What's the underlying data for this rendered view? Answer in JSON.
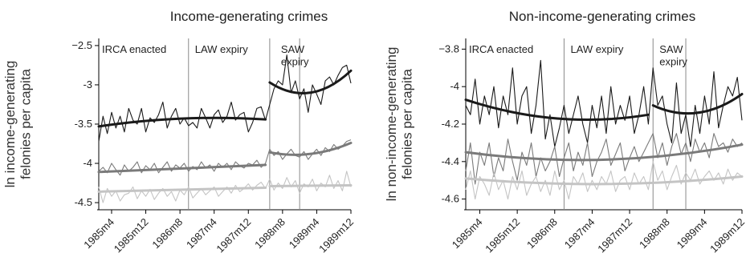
{
  "chart_data": [
    {
      "type": "line",
      "title": "Income-generating crimes",
      "ylabel": "ln income-generating\nfelonies per capita",
      "xlabel": "",
      "x_tick_labels": [
        "1985m4",
        "1985m12",
        "1986m8",
        "1987m4",
        "1987m12",
        "1988m8",
        "1989m4",
        "1989m12"
      ],
      "x_range": [
        "1985m1",
        "1989m12"
      ],
      "y_ticks": [
        -2.5,
        -3,
        -3.5,
        -4,
        -4.5
      ],
      "y_tick_labels": [
        "−2.5",
        "-3",
        "-3.5",
        "-4",
        "-4.5"
      ],
      "ylim": [
        -4.55,
        -2.45
      ],
      "grid": false,
      "events": [
        {
          "label": "IRCA enacted",
          "x": "1986m10"
        },
        {
          "label": "LAW expiry",
          "x": "1988m5"
        },
        {
          "label": "SAW\nexpiry",
          "x": "1988m12"
        }
      ],
      "series": [
        {
          "color": "#1a1a1a",
          "kind": "raw",
          "values": [
            -3.72,
            -3.4,
            -3.62,
            -3.35,
            -3.55,
            -3.4,
            -3.6,
            -3.3,
            -3.45,
            -3.5,
            -3.3,
            -3.6,
            -3.42,
            -3.48,
            -3.38,
            -3.22,
            -3.55,
            -3.4,
            -3.3,
            -3.5,
            -3.42,
            -3.52,
            -3.48,
            -3.55,
            -3.3,
            -3.42,
            -3.55,
            -3.38,
            -3.32,
            -3.48,
            -3.4,
            -3.22,
            -3.45,
            -3.38,
            -3.35,
            -3.6,
            -3.48,
            -3.3,
            -3.28,
            -3.45,
            -3.25,
            -3.05,
            -2.95,
            -3.0,
            -2.62,
            -3.1,
            -2.95,
            -3.18,
            -3.05,
            -3.35,
            -3.0,
            -3.12,
            -3.25,
            -2.95,
            -2.9,
            -3.0,
            -2.88,
            -2.78,
            -2.75,
            -2.98
          ]
        },
        {
          "color": "#1a1a1a",
          "kind": "fit",
          "segments": [
            {
              "from": "1985m1",
              "to": "1988m4",
              "y_start": -3.53,
              "y_peak": -3.43,
              "y_end": -3.44
            },
            {
              "from": "1988m5",
              "to": "1989m12",
              "y_start": -2.97,
              "y_min": -3.1,
              "y_end": -2.82
            }
          ]
        },
        {
          "color": "#7a7a7a",
          "kind": "raw",
          "values": [
            -4.1,
            -4.05,
            -4.12,
            -4.0,
            -4.08,
            -4.15,
            -4.02,
            -4.1,
            -4.05,
            -3.98,
            -4.12,
            -4.03,
            -4.08,
            -4.0,
            -4.12,
            -4.05,
            -3.98,
            -4.1,
            -4.02,
            -4.06,
            -4.0,
            -4.1,
            -4.04,
            -4.08,
            -3.98,
            -4.06,
            -4.02,
            -4.1,
            -4.0,
            -4.05,
            -4.0,
            -4.08,
            -3.98,
            -4.03,
            -4.06,
            -4.0,
            -4.02,
            -3.96,
            -4.05,
            -4.0,
            -3.82,
            -3.9,
            -3.85,
            -3.95,
            -3.88,
            -3.82,
            -3.9,
            -3.92,
            -3.85,
            -3.95,
            -3.88,
            -3.82,
            -3.9,
            -3.8,
            -3.85,
            -3.76,
            -3.82,
            -3.78,
            -3.72,
            -3.7
          ]
        },
        {
          "color": "#7a7a7a",
          "kind": "fit",
          "segments": [
            {
              "from": "1985m1",
              "to": "1988m4",
              "y_start": -4.11,
              "y_end": -4.02
            },
            {
              "from": "1988m5",
              "to": "1989m12",
              "y_start": -3.86,
              "y_min": -3.88,
              "y_end": -3.74
            }
          ]
        },
        {
          "color": "#c4c4c4",
          "kind": "raw",
          "values": [
            -4.3,
            -4.5,
            -4.32,
            -4.42,
            -4.35,
            -4.48,
            -4.4,
            -4.38,
            -4.3,
            -4.45,
            -4.35,
            -4.42,
            -4.33,
            -4.46,
            -4.38,
            -4.32,
            -4.42,
            -4.36,
            -4.48,
            -4.34,
            -4.4,
            -4.3,
            -4.44,
            -4.38,
            -4.32,
            -4.4,
            -4.35,
            -4.3,
            -4.42,
            -4.36,
            -4.3,
            -4.38,
            -4.28,
            -4.36,
            -4.32,
            -4.26,
            -4.34,
            -4.28,
            -4.24,
            -4.32,
            -4.2,
            -4.34,
            -4.25,
            -4.32,
            -4.18,
            -4.3,
            -4.22,
            -4.38,
            -4.26,
            -4.3,
            -4.2,
            -4.35,
            -4.25,
            -4.3,
            -4.15,
            -4.32,
            -4.22,
            -4.35,
            -4.1,
            -4.3
          ]
        },
        {
          "color": "#c4c4c4",
          "kind": "fit",
          "segments": [
            {
              "from": "1985m1",
              "to": "1988m4",
              "y_start": -4.36,
              "y_end": -4.31
            },
            {
              "from": "1988m5",
              "to": "1989m12",
              "y_start": -4.29,
              "y_end": -4.28
            }
          ]
        }
      ]
    },
    {
      "type": "line",
      "title": "Non-income-generating crimes",
      "ylabel": "ln non-income-generating\nfelonies per capita",
      "xlabel": "",
      "x_tick_labels": [
        "1985m4",
        "1985m12",
        "1986m8",
        "1987m4",
        "1987m12",
        "1988m8",
        "1989m4",
        "1989m12"
      ],
      "x_range": [
        "1985m1",
        "1989m12"
      ],
      "y_ticks": [
        -3.8,
        -4,
        -4.2,
        -4.4,
        -4.6
      ],
      "y_tick_labels": [
        "−3.8",
        "-4",
        "-4.2",
        "-4.4",
        "-4.6"
      ],
      "ylim": [
        -4.64,
        -3.76
      ],
      "grid": false,
      "events": [
        {
          "label": "IRCA enacted",
          "x": "1986m10"
        },
        {
          "label": "LAW expiry",
          "x": "1988m5"
        },
        {
          "label": "SAW\nexpiry",
          "x": "1988m12"
        }
      ],
      "series": [
        {
          "color": "#1a1a1a",
          "kind": "raw",
          "values": [
            -4.1,
            -4.15,
            -3.96,
            -4.2,
            -4.05,
            -4.15,
            -4.0,
            -4.22,
            -4.05,
            -4.15,
            -3.9,
            -4.2,
            -4.05,
            -4.0,
            -4.25,
            -4.1,
            -3.86,
            -4.28,
            -4.15,
            -4.32,
            -4.22,
            -4.1,
            -4.25,
            -4.15,
            -4.05,
            -4.2,
            -4.3,
            -4.1,
            -4.22,
            -4.05,
            -4.25,
            -4.0,
            -4.2,
            -4.1,
            -4.18,
            -4.05,
            -4.25,
            -4.15,
            -4.0,
            -4.2,
            -3.9,
            -4.1,
            -4.05,
            -4.2,
            -4.3,
            -3.98,
            -4.25,
            -4.15,
            -4.32,
            -4.1,
            -4.25,
            -4.05,
            -4.2,
            -3.92,
            -4.22,
            -4.1,
            -4.0,
            -4.05,
            -3.95,
            -4.18
          ]
        },
        {
          "color": "#1a1a1a",
          "kind": "fit",
          "segments": [
            {
              "from": "1985m1",
              "to": "1988m4",
              "y_start": -4.07,
              "y_min": -4.17,
              "y_end": -4.15
            },
            {
              "from": "1988m5",
              "to": "1989m12",
              "y_start": -4.1,
              "y_min": -4.14,
              "y_end": -4.04
            }
          ]
        },
        {
          "color": "#7a7a7a",
          "kind": "raw",
          "values": [
            -4.45,
            -4.3,
            -4.52,
            -4.35,
            -4.42,
            -4.3,
            -4.48,
            -4.38,
            -4.45,
            -4.28,
            -4.4,
            -4.5,
            -4.35,
            -4.42,
            -4.3,
            -4.48,
            -4.38,
            -4.45,
            -4.4,
            -4.32,
            -4.48,
            -4.38,
            -4.3,
            -4.45,
            -4.35,
            -4.42,
            -4.3,
            -4.48,
            -4.4,
            -4.35,
            -4.28,
            -4.42,
            -4.36,
            -4.3,
            -4.45,
            -4.38,
            -4.32,
            -4.4,
            -4.35,
            -4.3,
            -4.25,
            -4.38,
            -4.3,
            -4.42,
            -4.32,
            -4.25,
            -4.36,
            -4.3,
            -4.4,
            -4.28,
            -4.35,
            -4.3,
            -4.38,
            -4.25,
            -4.32,
            -4.3,
            -4.35,
            -4.28,
            -4.32,
            -4.3
          ]
        },
        {
          "color": "#7a7a7a",
          "kind": "fit",
          "segments": [
            {
              "from": "1985m1",
              "to": "1989m12",
              "y_start": -4.35,
              "y_min": -4.39,
              "y_end": -4.31
            }
          ]
        },
        {
          "color": "#c4c4c4",
          "kind": "raw",
          "values": [
            -4.55,
            -4.45,
            -4.6,
            -4.48,
            -4.52,
            -4.58,
            -4.46,
            -4.55,
            -4.5,
            -4.6,
            -4.48,
            -4.55,
            -4.45,
            -4.58,
            -4.52,
            -4.48,
            -4.56,
            -4.5,
            -4.58,
            -4.45,
            -4.55,
            -4.5,
            -4.6,
            -4.48,
            -4.52,
            -4.46,
            -4.56,
            -4.5,
            -4.55,
            -4.48,
            -4.52,
            -4.45,
            -4.56,
            -4.5,
            -4.48,
            -4.55,
            -4.46,
            -4.52,
            -4.48,
            -4.55,
            -4.4,
            -4.5,
            -4.45,
            -4.55,
            -4.48,
            -4.42,
            -4.52,
            -4.46,
            -4.5,
            -4.44,
            -4.52,
            -4.48,
            -4.45,
            -4.5,
            -4.46,
            -4.52,
            -4.44,
            -4.5,
            -4.46,
            -4.48
          ]
        },
        {
          "color": "#c4c4c4",
          "kind": "fit",
          "segments": [
            {
              "from": "1985m1",
              "to": "1989m12",
              "y_start": -4.49,
              "y_min": -4.52,
              "y_end": -4.48
            }
          ]
        }
      ]
    }
  ]
}
